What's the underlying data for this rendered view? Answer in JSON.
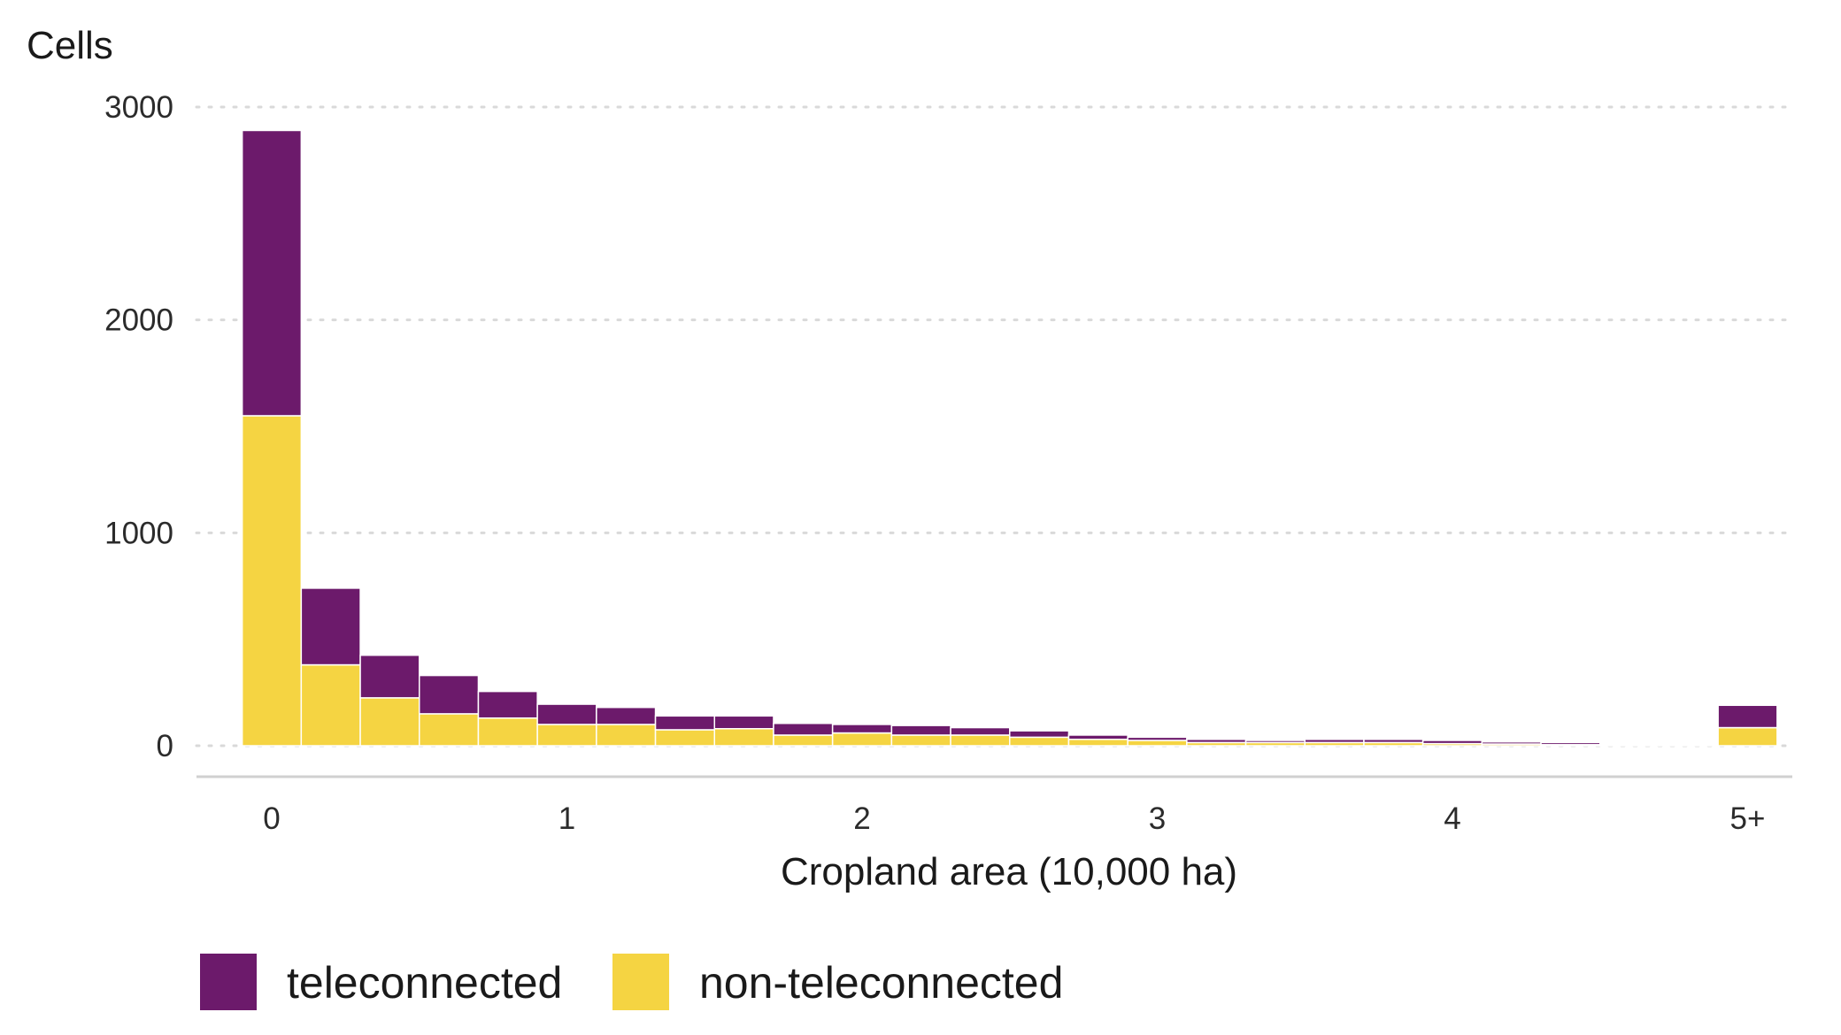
{
  "chart_data": {
    "type": "bar",
    "stacked": true,
    "ylabel": "Cells",
    "xlabel": "Cropland area (10,000 ha)",
    "ylim": [
      0,
      3000
    ],
    "xlim": [
      0,
      5
    ],
    "y_ticks": [
      0,
      1000,
      2000,
      3000
    ],
    "x_ticks": [
      {
        "value": 0,
        "label": "0"
      },
      {
        "value": 1,
        "label": "1"
      },
      {
        "value": 2,
        "label": "2"
      },
      {
        "value": 3,
        "label": "3"
      },
      {
        "value": 4,
        "label": "4"
      },
      {
        "value": 5,
        "label": "5+"
      }
    ],
    "grid": "horizontal-dotted",
    "bins": [
      {
        "center": 0.0,
        "width": 0.2
      },
      {
        "center": 0.2,
        "width": 0.2
      },
      {
        "center": 0.4,
        "width": 0.2
      },
      {
        "center": 0.6,
        "width": 0.2
      },
      {
        "center": 0.8,
        "width": 0.2
      },
      {
        "center": 1.0,
        "width": 0.2
      },
      {
        "center": 1.2,
        "width": 0.2
      },
      {
        "center": 1.4,
        "width": 0.2
      },
      {
        "center": 1.6,
        "width": 0.2
      },
      {
        "center": 1.8,
        "width": 0.2
      },
      {
        "center": 2.0,
        "width": 0.2
      },
      {
        "center": 2.2,
        "width": 0.2
      },
      {
        "center": 2.4,
        "width": 0.2
      },
      {
        "center": 2.6,
        "width": 0.2
      },
      {
        "center": 2.8,
        "width": 0.2
      },
      {
        "center": 3.0,
        "width": 0.2
      },
      {
        "center": 3.2,
        "width": 0.2
      },
      {
        "center": 3.4,
        "width": 0.2
      },
      {
        "center": 3.6,
        "width": 0.2
      },
      {
        "center": 3.8,
        "width": 0.2
      },
      {
        "center": 4.0,
        "width": 0.2
      },
      {
        "center": 4.2,
        "width": 0.2
      },
      {
        "center": 4.4,
        "width": 0.2
      },
      {
        "center": 4.6,
        "width": 0.2
      },
      {
        "center": 4.8,
        "width": 0.2
      },
      {
        "center": 5.0,
        "width": 0.2
      }
    ],
    "series": [
      {
        "name": "non-teleconnected",
        "color": "#F5D442",
        "values": [
          1550,
          380,
          225,
          150,
          130,
          100,
          100,
          75,
          80,
          50,
          60,
          50,
          50,
          40,
          30,
          25,
          15,
          15,
          15,
          15,
          10,
          8,
          5,
          3,
          5,
          85
        ]
      },
      {
        "name": "teleconnected",
        "color": "#6C1A6B",
        "values": [
          1340,
          360,
          200,
          180,
          125,
          95,
          80,
          65,
          60,
          55,
          40,
          45,
          35,
          30,
          20,
          15,
          15,
          10,
          15,
          15,
          15,
          10,
          10,
          5,
          5,
          105
        ]
      }
    ],
    "legend": {
      "position": "bottom-left",
      "order": [
        "teleconnected",
        "non-teleconnected"
      ]
    }
  }
}
